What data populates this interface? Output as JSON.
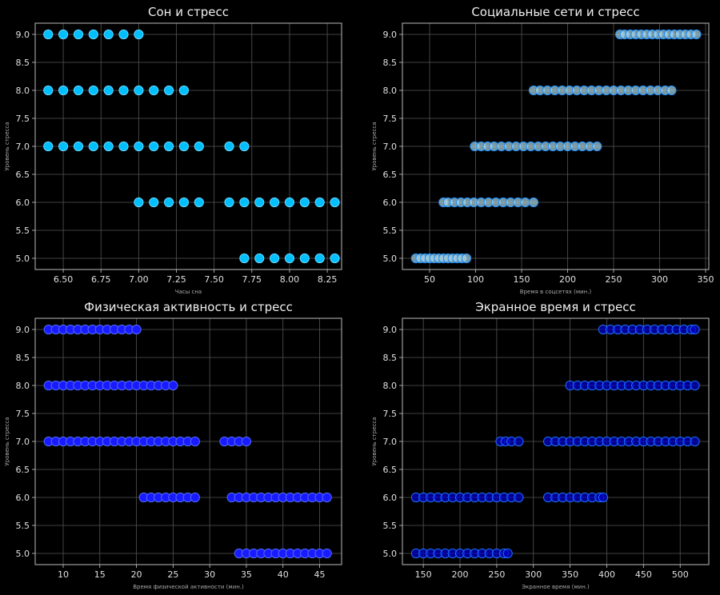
{
  "chart_data": [
    {
      "type": "scatter",
      "title": "Сон и стресс",
      "xlabel": "Часы сна",
      "ylabel": "Уровень стресса",
      "xlim": [
        6.314,
        8.345
      ],
      "ylim": [
        4.8,
        9.2
      ],
      "xticks": [
        6.5,
        6.75,
        7.0,
        7.25,
        7.5,
        7.75,
        8.0,
        8.25
      ],
      "xtick_labels": [
        "6.50",
        "6.75",
        "7.00",
        "7.25",
        "7.50",
        "7.75",
        "8.00",
        "8.25"
      ],
      "yticks": [
        5.0,
        5.5,
        6.0,
        6.5,
        7.0,
        7.5,
        8.0,
        8.5,
        9.0
      ],
      "ytick_labels": [
        "5.0",
        "5.5",
        "6.0",
        "6.5",
        "7.0",
        "7.5",
        "8.0",
        "8.5",
        "9.0"
      ],
      "grid": true,
      "color": "#00bfff",
      "edge": "#66d9ff",
      "alpha": 1,
      "points": {
        "9": [
          6.4,
          6.5,
          6.6,
          6.7,
          6.8,
          6.9,
          7.0
        ],
        "8": [
          6.4,
          6.5,
          6.6,
          6.7,
          6.8,
          6.9,
          7.0,
          7.1,
          7.2,
          7.3
        ],
        "7": [
          6.4,
          6.5,
          6.6,
          6.7,
          6.8,
          6.9,
          7.0,
          7.1,
          7.2,
          7.3,
          7.4,
          7.6,
          7.7
        ],
        "6": [
          7.0,
          7.1,
          7.2,
          7.3,
          7.4,
          7.6,
          7.7,
          7.8,
          7.9,
          8.0,
          8.1,
          8.2,
          8.3
        ],
        "5": [
          7.7,
          7.8,
          7.9,
          8.0,
          8.1,
          8.2,
          8.3
        ]
      }
    },
    {
      "type": "scatter",
      "title": "Социальные сети и стресс",
      "xlabel": "Время в соцсетях (мин.)",
      "ylabel": "Уровень стресса",
      "xlim": [
        20.4,
        353.5
      ],
      "ylim": [
        4.8,
        9.2
      ],
      "xticks": [
        50,
        100,
        150,
        200,
        250,
        300,
        350
      ],
      "xtick_labels": [
        "50",
        "100",
        "150",
        "200",
        "250",
        "300",
        "350"
      ],
      "yticks": [
        5.0,
        5.5,
        6.0,
        6.5,
        7.0,
        7.5,
        8.0,
        8.5,
        9.0
      ],
      "ytick_labels": [
        "5.0",
        "5.5",
        "6.0",
        "6.5",
        "7.0",
        "7.5",
        "8.0",
        "8.5",
        "9.0"
      ],
      "grid": true,
      "color": "#add8e6",
      "edge": "#1e90ff",
      "alpha": 0.7,
      "points": {
        "9": [
          257,
          262,
          268,
          274,
          280,
          286,
          292,
          298,
          304,
          310,
          316,
          322,
          328,
          334,
          340
        ],
        "8": [
          163,
          170,
          178,
          186,
          194,
          202,
          210,
          218,
          226,
          234,
          242,
          250,
          258,
          266,
          274,
          282,
          290,
          298,
          306,
          313
        ],
        "7": [
          99,
          106,
          113,
          120,
          128,
          136,
          144,
          152,
          160,
          168,
          176,
          184,
          192,
          200,
          208,
          216,
          224,
          232
        ],
        "6": [
          65,
          70,
          77,
          84,
          91,
          98,
          106,
          114,
          122,
          130,
          138,
          146,
          154,
          163
        ],
        "5": [
          35,
          40,
          45,
          50,
          55,
          60,
          65,
          70,
          75,
          80,
          85,
          90
        ]
      }
    },
    {
      "type": "scatter",
      "title": "Физическая активность и стресс",
      "xlabel": "Время физической активности (мин.)",
      "ylabel": "Уровень стресса",
      "xlim": [
        6.18,
        48.0
      ],
      "ylim": [
        4.8,
        9.2
      ],
      "xticks": [
        10,
        15,
        20,
        25,
        30,
        35,
        40,
        45
      ],
      "xtick_labels": [
        "10",
        "15",
        "20",
        "25",
        "30",
        "35",
        "40",
        "45"
      ],
      "yticks": [
        5.0,
        5.5,
        6.0,
        6.5,
        7.0,
        7.5,
        8.0,
        8.5,
        9.0
      ],
      "ytick_labels": [
        "5.0",
        "5.5",
        "6.0",
        "6.5",
        "7.0",
        "7.5",
        "8.0",
        "8.5",
        "9.0"
      ],
      "grid": true,
      "color": "#1a1aff",
      "edge": "#4d6bff",
      "alpha": 1,
      "points": {
        "9": [
          8,
          9,
          10,
          11,
          12,
          13,
          14,
          15,
          16,
          17,
          18,
          19,
          20
        ],
        "8": [
          8,
          9,
          10,
          11,
          12,
          13,
          14,
          15,
          16,
          17,
          18,
          19,
          20,
          21,
          22,
          23,
          24,
          25
        ],
        "7": [
          8,
          9,
          10,
          11,
          12,
          13,
          14,
          15,
          16,
          17,
          18,
          19,
          20,
          21,
          22,
          23,
          24,
          25,
          26,
          27,
          28,
          32,
          33,
          34,
          35
        ],
        "6": [
          21,
          22,
          23,
          24,
          25,
          26,
          27,
          28,
          33,
          34,
          35,
          36,
          37,
          38,
          39,
          40,
          41,
          42,
          43,
          44,
          45,
          46
        ],
        "5": [
          34,
          35,
          36,
          37,
          38,
          39,
          40,
          41,
          42,
          43,
          44,
          45,
          46
        ]
      }
    },
    {
      "type": "scatter",
      "title": "Экранное время и стресс",
      "xlabel": "Экранное время (мин.)",
      "ylabel": "Уровень стресса",
      "xlim": [
        121.5,
        539.0
      ],
      "ylim": [
        4.8,
        9.2
      ],
      "xticks": [
        150,
        200,
        250,
        300,
        350,
        400,
        450,
        500
      ],
      "xtick_labels": [
        "150",
        "200",
        "250",
        "300",
        "350",
        "400",
        "450",
        "500"
      ],
      "yticks": [
        5.0,
        5.5,
        6.0,
        6.5,
        7.0,
        7.5,
        8.0,
        8.5,
        9.0
      ],
      "ytick_labels": [
        "5.0",
        "5.5",
        "6.0",
        "6.5",
        "7.0",
        "7.5",
        "8.0",
        "8.5",
        "9.0"
      ],
      "grid": true,
      "color": "#0000cd",
      "edge": "#1e6fff",
      "alpha": 0.7,
      "points": {
        "9": [
          395,
          405,
          415,
          425,
          435,
          445,
          455,
          465,
          475,
          485,
          495,
          505,
          515,
          520
        ],
        "8": [
          350,
          360,
          370,
          380,
          390,
          400,
          410,
          420,
          430,
          440,
          450,
          460,
          470,
          480,
          490,
          500,
          510,
          520
        ],
        "7": [
          255,
          262,
          270,
          280,
          320,
          330,
          340,
          350,
          360,
          370,
          380,
          390,
          400,
          410,
          420,
          430,
          440,
          450,
          460,
          470,
          480,
          490,
          500,
          510,
          520
        ],
        "6": [
          140,
          150,
          160,
          170,
          180,
          190,
          200,
          210,
          220,
          230,
          240,
          250,
          260,
          270,
          280,
          320,
          330,
          340,
          350,
          360,
          370,
          380,
          390,
          395
        ],
        "5": [
          140,
          150,
          160,
          170,
          180,
          190,
          200,
          210,
          220,
          230,
          240,
          250,
          260,
          265
        ]
      }
    }
  ]
}
